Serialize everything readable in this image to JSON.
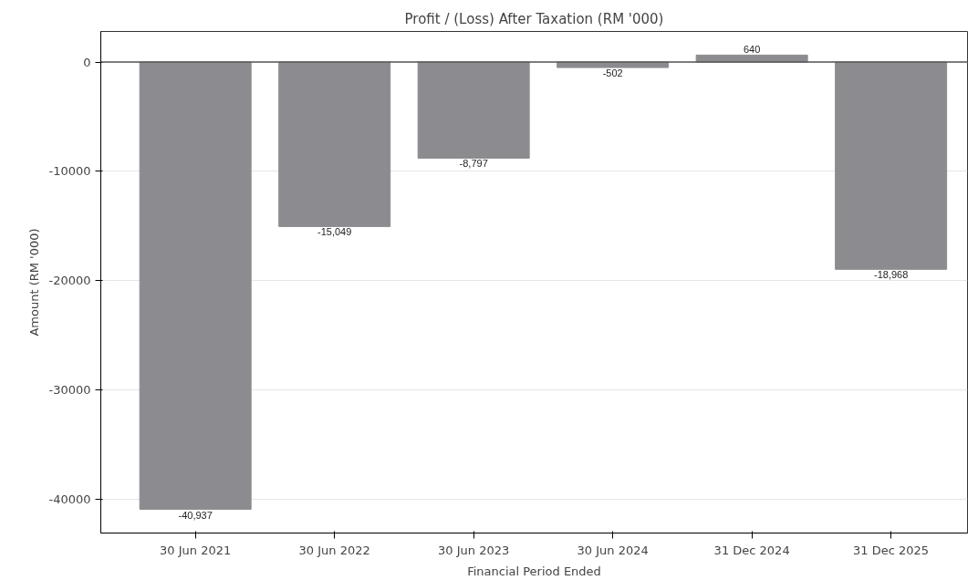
{
  "chart_data": {
    "type": "bar",
    "title": "Profit / (Loss) After Taxation (RM '000)",
    "xlabel": "Financial Period Ended",
    "ylabel": "Amount (RM '000)",
    "categories": [
      "30 Jun 2021",
      "30 Jun 2022",
      "30 Jun 2023",
      "30 Jun 2024",
      "31 Dec 2024",
      "31 Dec 2025"
    ],
    "values": [
      -40937,
      -15049,
      -8797,
      -502,
      640,
      -18968
    ],
    "value_labels": [
      "-40,937",
      "-15,049",
      "-8,797",
      "-502",
      "640",
      "-18,968"
    ],
    "color": "#8c8c90",
    "ylim": [
      -43100,
      2800
    ],
    "yticks": [
      -40000,
      -30000,
      -20000,
      -10000,
      0
    ],
    "ref_lines": [
      {
        "axis": "y",
        "value": 0,
        "color": "#555555"
      }
    ],
    "grid": "y"
  }
}
